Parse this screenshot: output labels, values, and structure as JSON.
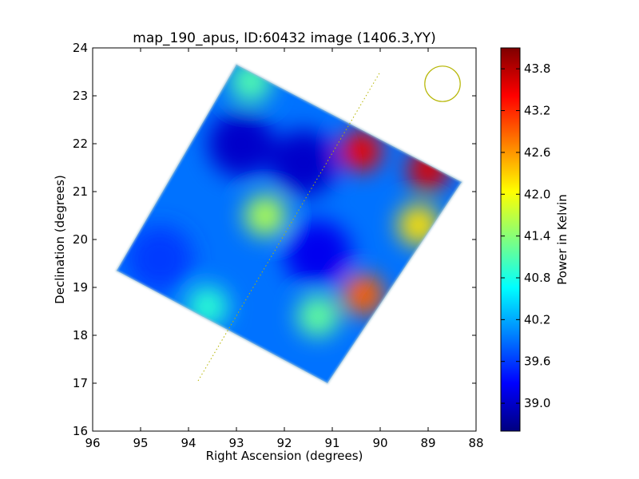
{
  "chart_data": {
    "type": "heatmap",
    "title": "map_190_apus, ID:60432 image (1406.3,YY)",
    "xlabel": "Right Ascension (degrees)",
    "ylabel": "Declination (degrees)",
    "xlim": [
      96,
      88
    ],
    "ylim": [
      16,
      24
    ],
    "xticks": [
      96,
      95,
      94,
      93,
      92,
      91,
      90,
      89,
      88
    ],
    "yticks": [
      16,
      17,
      18,
      19,
      20,
      21,
      22,
      23,
      24
    ],
    "grid": false,
    "colorbar": {
      "label": "Power in Kelvin",
      "range": [
        38.6,
        44.1
      ],
      "ticks": [
        "39.0",
        "39.6",
        "40.2",
        "40.8",
        "41.4",
        "42.0",
        "42.6",
        "43.2",
        "43.8"
      ],
      "colormap": "jet"
    },
    "map_footprint": [
      [
        93.0,
        23.65
      ],
      [
        88.3,
        21.2
      ],
      [
        91.1,
        17.0
      ],
      [
        95.5,
        19.35
      ]
    ],
    "hotspots": [
      {
        "ra": 90.4,
        "dec": 21.85,
        "value": 43.5
      },
      {
        "ra": 89.0,
        "dec": 21.45,
        "value": 43.6
      },
      {
        "ra": 90.35,
        "dec": 18.85,
        "value": 42.9
      },
      {
        "ra": 89.2,
        "dec": 20.3,
        "value": 42.2
      },
      {
        "ra": 92.4,
        "dec": 20.5,
        "value": 41.6
      },
      {
        "ra": 92.7,
        "dec": 23.3,
        "value": 41.1
      },
      {
        "ra": 91.3,
        "dec": 18.4,
        "value": 41.2
      },
      {
        "ra": 93.6,
        "dec": 18.6,
        "value": 40.9
      }
    ],
    "coldspots": [
      {
        "ra": 92.9,
        "dec": 22.0,
        "value": 39.0
      },
      {
        "ra": 91.6,
        "dec": 21.6,
        "value": 39.0
      },
      {
        "ra": 91.3,
        "dec": 19.7,
        "value": 39.2
      },
      {
        "ra": 94.6,
        "dec": 19.6,
        "value": 39.6
      }
    ],
    "background_value": 39.9,
    "overlays": {
      "dotted_line": [
        [
          93.8,
          17.05
        ],
        [
          90.0,
          23.5
        ]
      ],
      "circle": {
        "ra": 88.7,
        "dec": 23.25,
        "radius_deg": 0.37,
        "color": "#b5b500"
      }
    }
  }
}
